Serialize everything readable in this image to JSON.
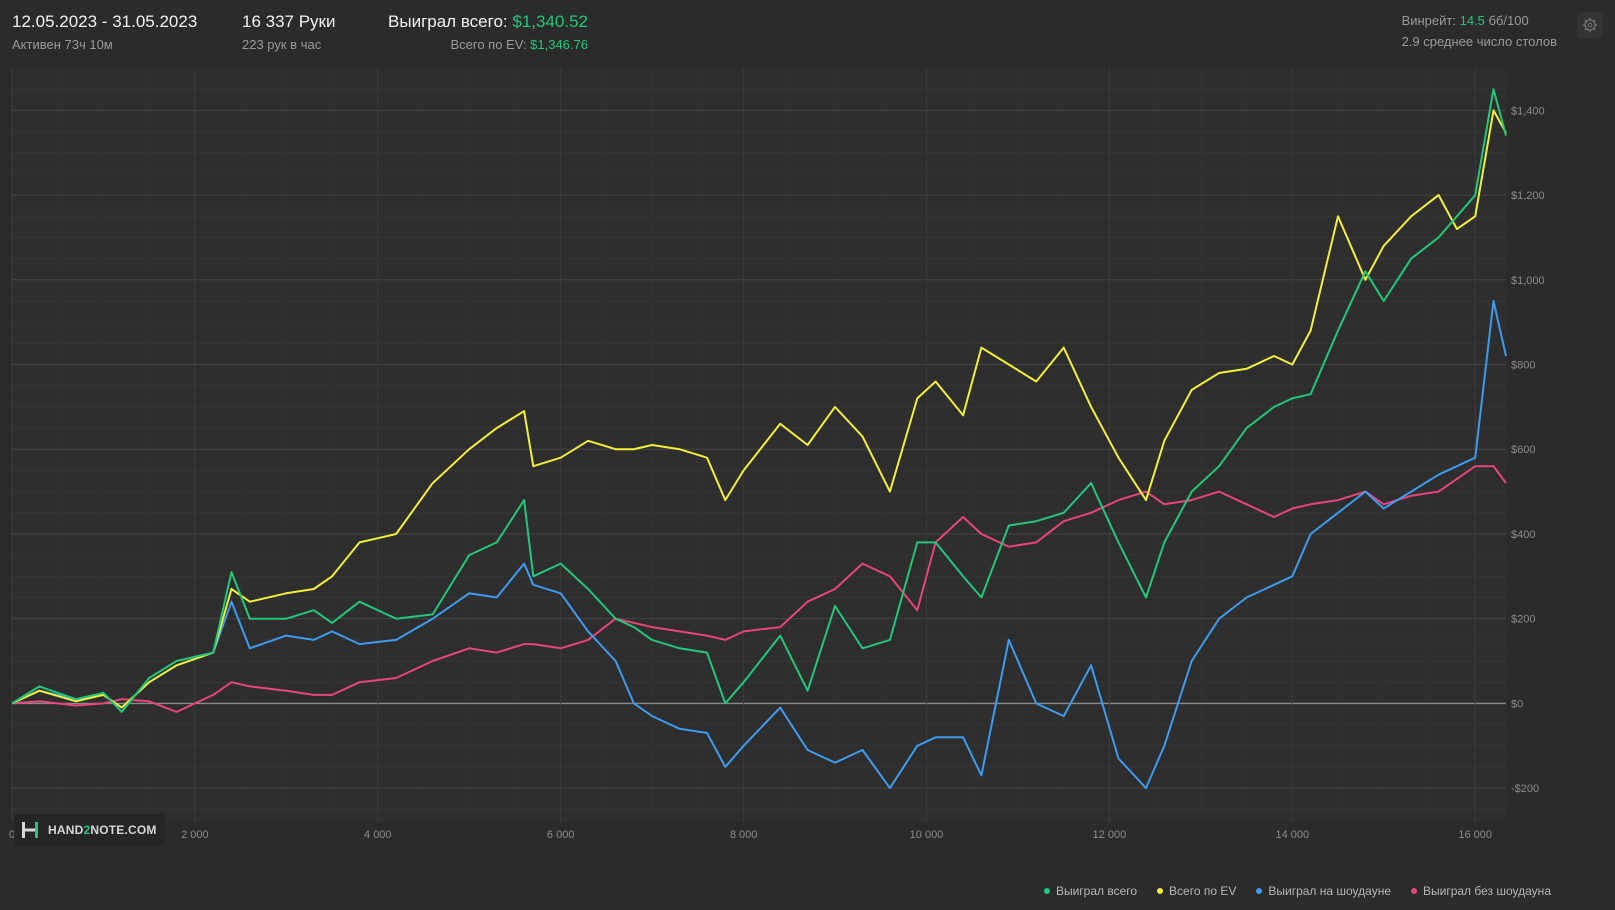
{
  "header": {
    "date_range": "12.05.2023 - 31.05.2023",
    "active_time": "Активен 73ч 10м",
    "hands": "16 337 Руки",
    "hands_per_hour": "223 рук в час",
    "won_total_label": "Выиграл всего:",
    "won_total_value": "$1,340.52",
    "ev_label": "Всего по EV:",
    "ev_value": "$1,346.76",
    "winrate_label": "Винрейт:",
    "winrate_value": "14.5",
    "winrate_unit": "бб/100",
    "tables": "2.9 среднее число столов",
    "settings_icon": "gear-icon"
  },
  "logo": {
    "text_a": "HAND",
    "text_b": "2",
    "text_c": "NOTE.COM"
  },
  "colors": {
    "background": "#2b2b2b",
    "won_total": "#22c77a",
    "ev": "#f2ef3a",
    "showdown": "#3d9cf0",
    "non_showdown": "#e8457a"
  },
  "chart_data": {
    "type": "line",
    "title": "",
    "xlabel": "",
    "ylabel": "",
    "xlim": [
      0,
      16337
    ],
    "ylim": [
      -280,
      1500
    ],
    "x_ticks": [
      0,
      2000,
      4000,
      6000,
      8000,
      10000,
      12000,
      14000,
      16000
    ],
    "x_tick_labels": [
      "0",
      "2 000",
      "4 000",
      "6 000",
      "8 000",
      "10 000",
      "12 000",
      "14 000",
      "16 000"
    ],
    "y_ticks": [
      -200,
      0,
      200,
      400,
      600,
      800,
      1000,
      1200,
      1400
    ],
    "y_tick_labels": [
      "-$200",
      "$0",
      "$200",
      "$400",
      "$600",
      "$800",
      "$1,000",
      "$1,200",
      "$1,400"
    ],
    "y_axis_position": "right",
    "grid": true,
    "legend_position": "bottom-right",
    "series": [
      {
        "name": "Выиграл всего",
        "color": "#22c77a",
        "x": [
          0,
          300,
          700,
          1000,
          1200,
          1500,
          1800,
          2200,
          2400,
          2600,
          3000,
          3300,
          3500,
          3800,
          4200,
          4600,
          5000,
          5300,
          5600,
          5700,
          6000,
          6300,
          6600,
          6800,
          7000,
          7300,
          7600,
          7800,
          8000,
          8400,
          8700,
          9000,
          9300,
          9600,
          9900,
          10100,
          10400,
          10600,
          10900,
          11200,
          11500,
          11800,
          12100,
          12400,
          12600,
          12900,
          13200,
          13500,
          13800,
          14000,
          14200,
          14500,
          14800,
          15000,
          15300,
          15600,
          15800,
          16000,
          16200,
          16337
        ],
        "values": [
          0,
          40,
          10,
          25,
          -20,
          60,
          100,
          120,
          310,
          200,
          200,
          220,
          190,
          240,
          200,
          210,
          350,
          380,
          480,
          300,
          330,
          270,
          200,
          180,
          150,
          130,
          120,
          0,
          50,
          160,
          30,
          230,
          130,
          150,
          380,
          380,
          300,
          250,
          420,
          430,
          450,
          520,
          380,
          250,
          380,
          500,
          560,
          650,
          700,
          720,
          730,
          880,
          1020,
          950,
          1050,
          1100,
          1150,
          1200,
          1450,
          1340.52
        ]
      },
      {
        "name": "Всего по EV",
        "color": "#f2ef3a",
        "x": [
          0,
          300,
          700,
          1000,
          1200,
          1500,
          1800,
          2200,
          2400,
          2600,
          3000,
          3300,
          3500,
          3800,
          4200,
          4600,
          5000,
          5300,
          5600,
          5700,
          6000,
          6300,
          6600,
          6800,
          7000,
          7300,
          7600,
          7800,
          8000,
          8400,
          8700,
          9000,
          9300,
          9600,
          9900,
          10100,
          10400,
          10600,
          10900,
          11200,
          11500,
          11800,
          12100,
          12400,
          12600,
          12900,
          13200,
          13500,
          13800,
          14000,
          14200,
          14500,
          14800,
          15000,
          15300,
          15600,
          15800,
          16000,
          16200,
          16337
        ],
        "values": [
          0,
          30,
          5,
          20,
          -10,
          50,
          90,
          120,
          270,
          240,
          260,
          270,
          300,
          380,
          400,
          520,
          600,
          650,
          690,
          560,
          580,
          620,
          600,
          600,
          610,
          600,
          580,
          480,
          550,
          660,
          610,
          700,
          630,
          500,
          720,
          760,
          680,
          840,
          800,
          760,
          840,
          700,
          580,
          480,
          620,
          740,
          780,
          790,
          820,
          800,
          880,
          1150,
          1000,
          1080,
          1150,
          1200,
          1120,
          1150,
          1400,
          1346.76
        ]
      },
      {
        "name": "Выиграл на шоудауне",
        "color": "#3d9cf0",
        "x": [
          0,
          300,
          700,
          1000,
          1200,
          1500,
          1800,
          2200,
          2400,
          2600,
          3000,
          3300,
          3500,
          3800,
          4200,
          4600,
          5000,
          5300,
          5600,
          5700,
          6000,
          6300,
          6600,
          6800,
          7000,
          7300,
          7600,
          7800,
          8000,
          8400,
          8700,
          9000,
          9300,
          9600,
          9900,
          10100,
          10400,
          10600,
          10900,
          11200,
          11500,
          11800,
          12100,
          12400,
          12600,
          12900,
          13200,
          13500,
          13800,
          14000,
          14200,
          14500,
          14800,
          15000,
          15300,
          15600,
          15800,
          16000,
          16200,
          16337
        ],
        "values": [
          0,
          30,
          10,
          20,
          -10,
          50,
          90,
          120,
          240,
          130,
          160,
          150,
          170,
          140,
          150,
          200,
          260,
          250,
          330,
          280,
          260,
          170,
          100,
          0,
          -30,
          -60,
          -70,
          -150,
          -100,
          -10,
          -110,
          -140,
          -110,
          -200,
          -100,
          -80,
          -80,
          -170,
          150,
          0,
          -30,
          90,
          -130,
          -200,
          -100,
          100,
          200,
          250,
          280,
          300,
          400,
          450,
          500,
          460,
          500,
          540,
          560,
          580,
          950,
          820
        ]
      },
      {
        "name": "Выиграл без шоудауна",
        "color": "#e8457a",
        "x": [
          0,
          300,
          700,
          1000,
          1200,
          1500,
          1800,
          2200,
          2400,
          2600,
          3000,
          3300,
          3500,
          3800,
          4200,
          4600,
          5000,
          5300,
          5600,
          5700,
          6000,
          6300,
          6600,
          6800,
          7000,
          7300,
          7600,
          7800,
          8000,
          8400,
          8700,
          9000,
          9300,
          9600,
          9900,
          10100,
          10400,
          10600,
          10900,
          11200,
          11500,
          11800,
          12100,
          12400,
          12600,
          12900,
          13200,
          13500,
          13800,
          14000,
          14200,
          14500,
          14800,
          15000,
          15300,
          15600,
          15800,
          16000,
          16200,
          16337
        ],
        "values": [
          0,
          5,
          -5,
          0,
          10,
          5,
          -20,
          20,
          50,
          40,
          30,
          20,
          20,
          50,
          60,
          100,
          130,
          120,
          140,
          140,
          130,
          150,
          200,
          190,
          180,
          170,
          160,
          150,
          170,
          180,
          240,
          270,
          330,
          300,
          220,
          380,
          440,
          400,
          370,
          380,
          430,
          450,
          480,
          500,
          470,
          480,
          500,
          470,
          440,
          460,
          470,
          480,
          500,
          470,
          490,
          500,
          530,
          560,
          560,
          520
        ]
      }
    ]
  }
}
